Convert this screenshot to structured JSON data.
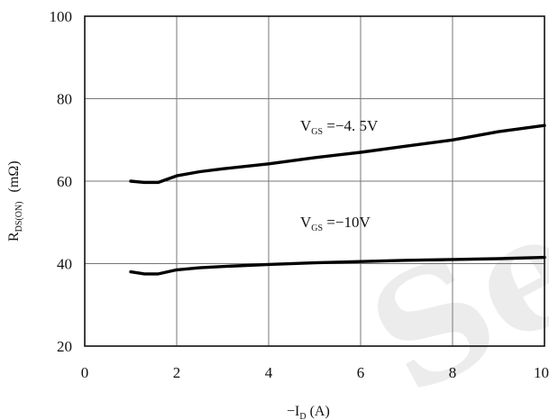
{
  "watermark": "Sei",
  "chart_data": {
    "type": "line",
    "xlabel": "−I_D (A)",
    "xlabel_main": "−I",
    "xlabel_sub": "D",
    "xlabel_unit": " (A)",
    "ylabel_main": "R",
    "ylabel_sub": "DS(ON)",
    "ylabel_unit": "(mΩ)",
    "xlim": [
      0,
      10
    ],
    "ylim": [
      20,
      100
    ],
    "xticks": [
      0,
      2,
      4,
      6,
      8,
      10
    ],
    "yticks": [
      20,
      40,
      60,
      80,
      100
    ],
    "grid": true,
    "series": [
      {
        "name": "V_GS =−4.5V",
        "label_main": "V",
        "label_sub": "GS",
        "label_value": " =−4. 5V",
        "x": [
          1.0,
          1.3,
          1.6,
          2.0,
          2.5,
          3,
          4,
          5,
          6,
          7,
          8,
          9,
          10
        ],
        "y": [
          60.0,
          59.7,
          59.7,
          61.3,
          62.3,
          63.0,
          64.2,
          65.7,
          67.0,
          68.5,
          70.0,
          72.0,
          73.5
        ]
      },
      {
        "name": "V_GS =−10V",
        "label_main": "V",
        "label_sub": "GS",
        "label_value": " =−10V",
        "x": [
          1.0,
          1.3,
          1.6,
          2.0,
          2.5,
          3,
          4,
          5,
          6,
          7,
          8,
          9,
          10
        ],
        "y": [
          38.0,
          37.5,
          37.5,
          38.5,
          39.0,
          39.3,
          39.8,
          40.2,
          40.5,
          40.8,
          41.0,
          41.2,
          41.5
        ]
      }
    ]
  }
}
